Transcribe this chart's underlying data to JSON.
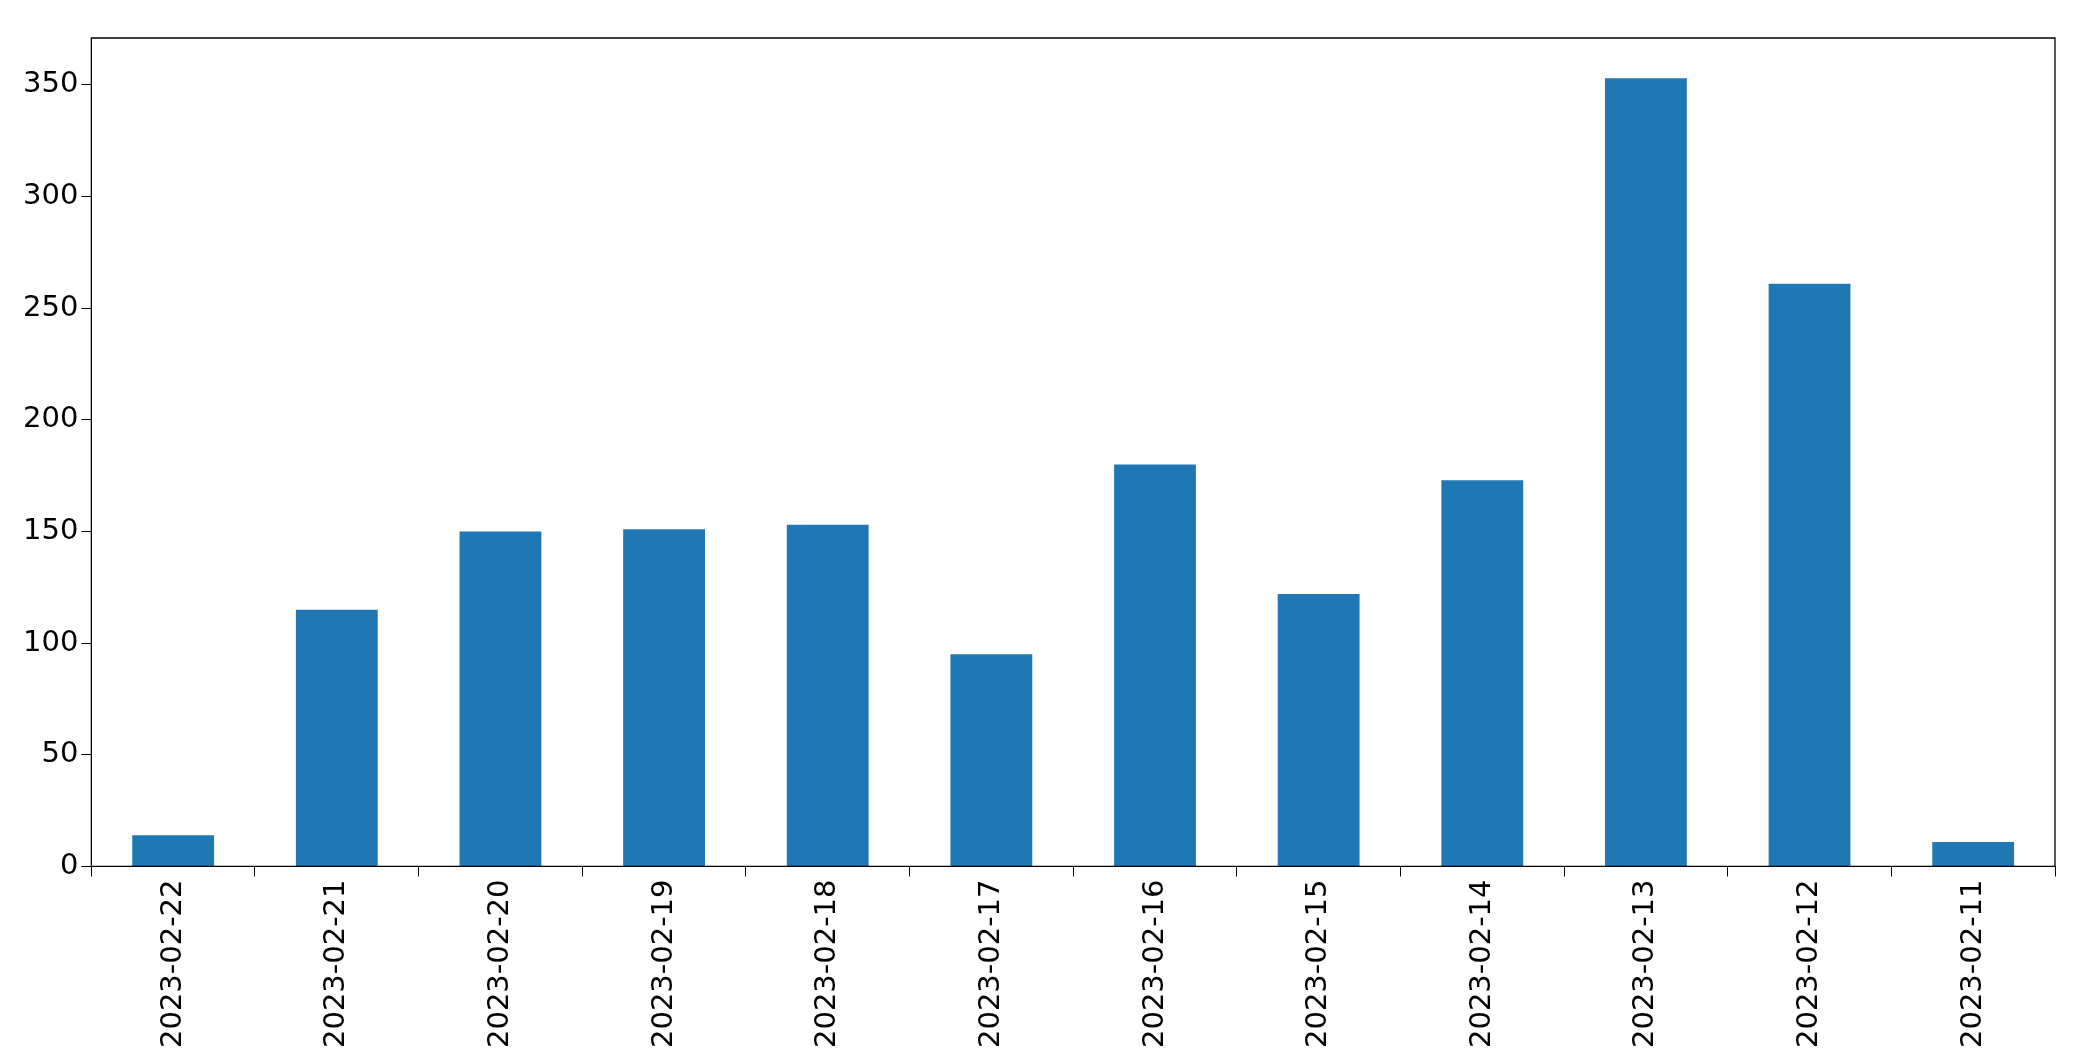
{
  "chart_data": {
    "type": "bar",
    "categories": [
      "2023-02-22",
      "2023-02-21",
      "2023-02-20",
      "2023-02-19",
      "2023-02-18",
      "2023-02-17",
      "2023-02-16",
      "2023-02-15",
      "2023-02-14",
      "2023-02-13",
      "2023-02-12",
      "2023-02-11"
    ],
    "values": [
      14,
      115,
      150,
      151,
      153,
      95,
      180,
      122,
      173,
      353,
      261,
      11
    ],
    "color": "#1f77b4",
    "ylim": [
      0,
      371
    ],
    "yticks": [
      0,
      50,
      100,
      150,
      200,
      250,
      300,
      350
    ],
    "grid": false,
    "legend": false
  }
}
